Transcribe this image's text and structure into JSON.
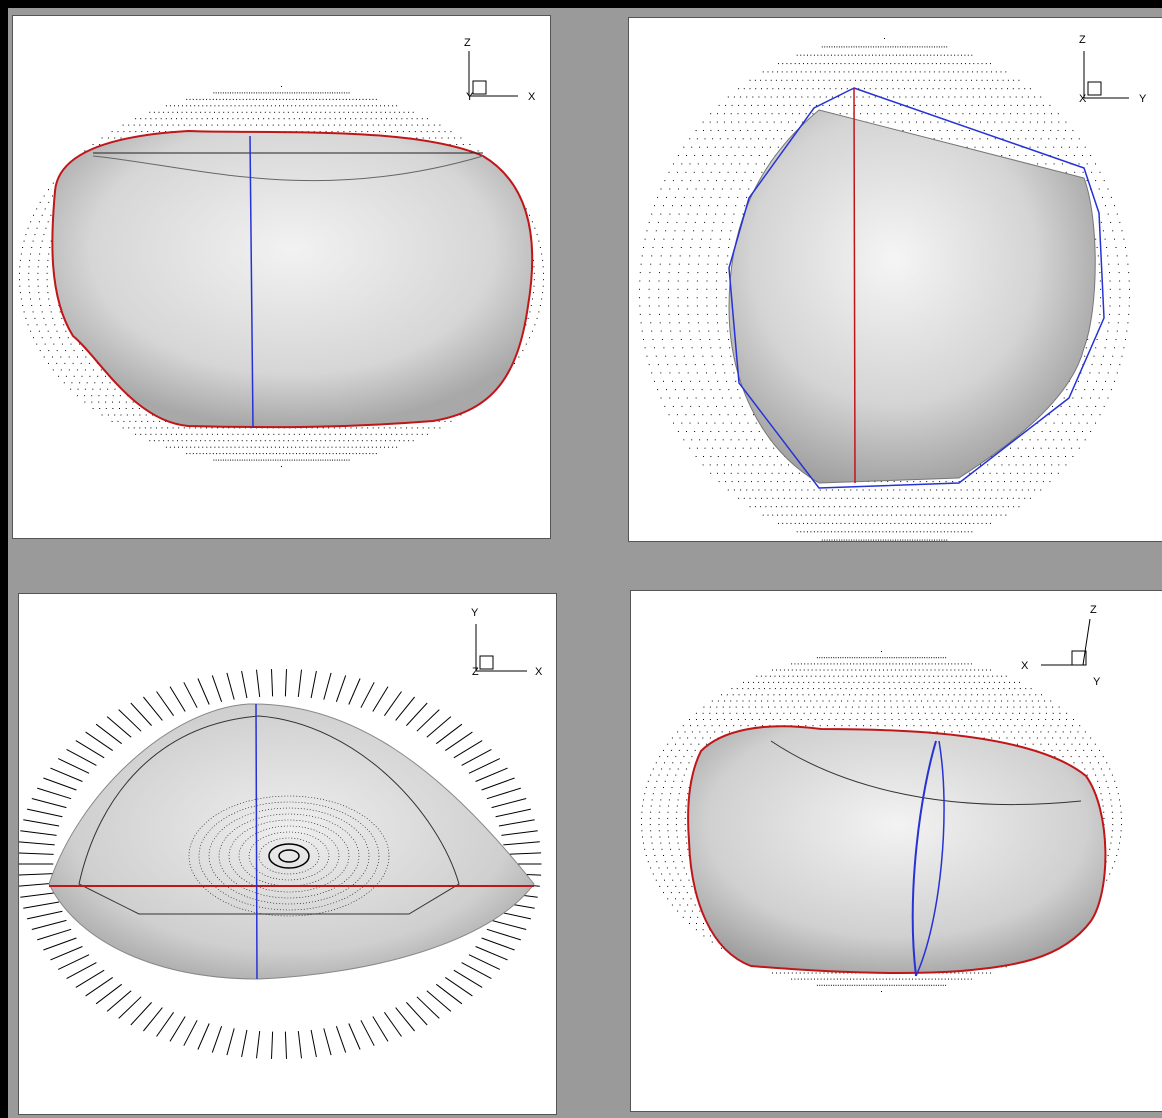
{
  "panels": [
    {
      "id": "xz-view",
      "axes": {
        "vertical": "Z",
        "horizontal": "X",
        "depth": "Y"
      }
    },
    {
      "id": "yz-view",
      "axes": {
        "vertical": "Z",
        "horizontal": "Y",
        "depth": "X"
      }
    },
    {
      "id": "xy-view",
      "axes": {
        "vertical": "Y",
        "horizontal": "X",
        "depth": "Z"
      }
    },
    {
      "id": "iso-view",
      "axes": {
        "vertical": "Z",
        "horizontal": "X",
        "depth": "Y"
      }
    }
  ],
  "colors": {
    "background": "#9a9a9a",
    "panel": "#ffffff",
    "red_outline": "#c0161a",
    "blue_outline": "#2632d6",
    "dots": "#000000"
  }
}
